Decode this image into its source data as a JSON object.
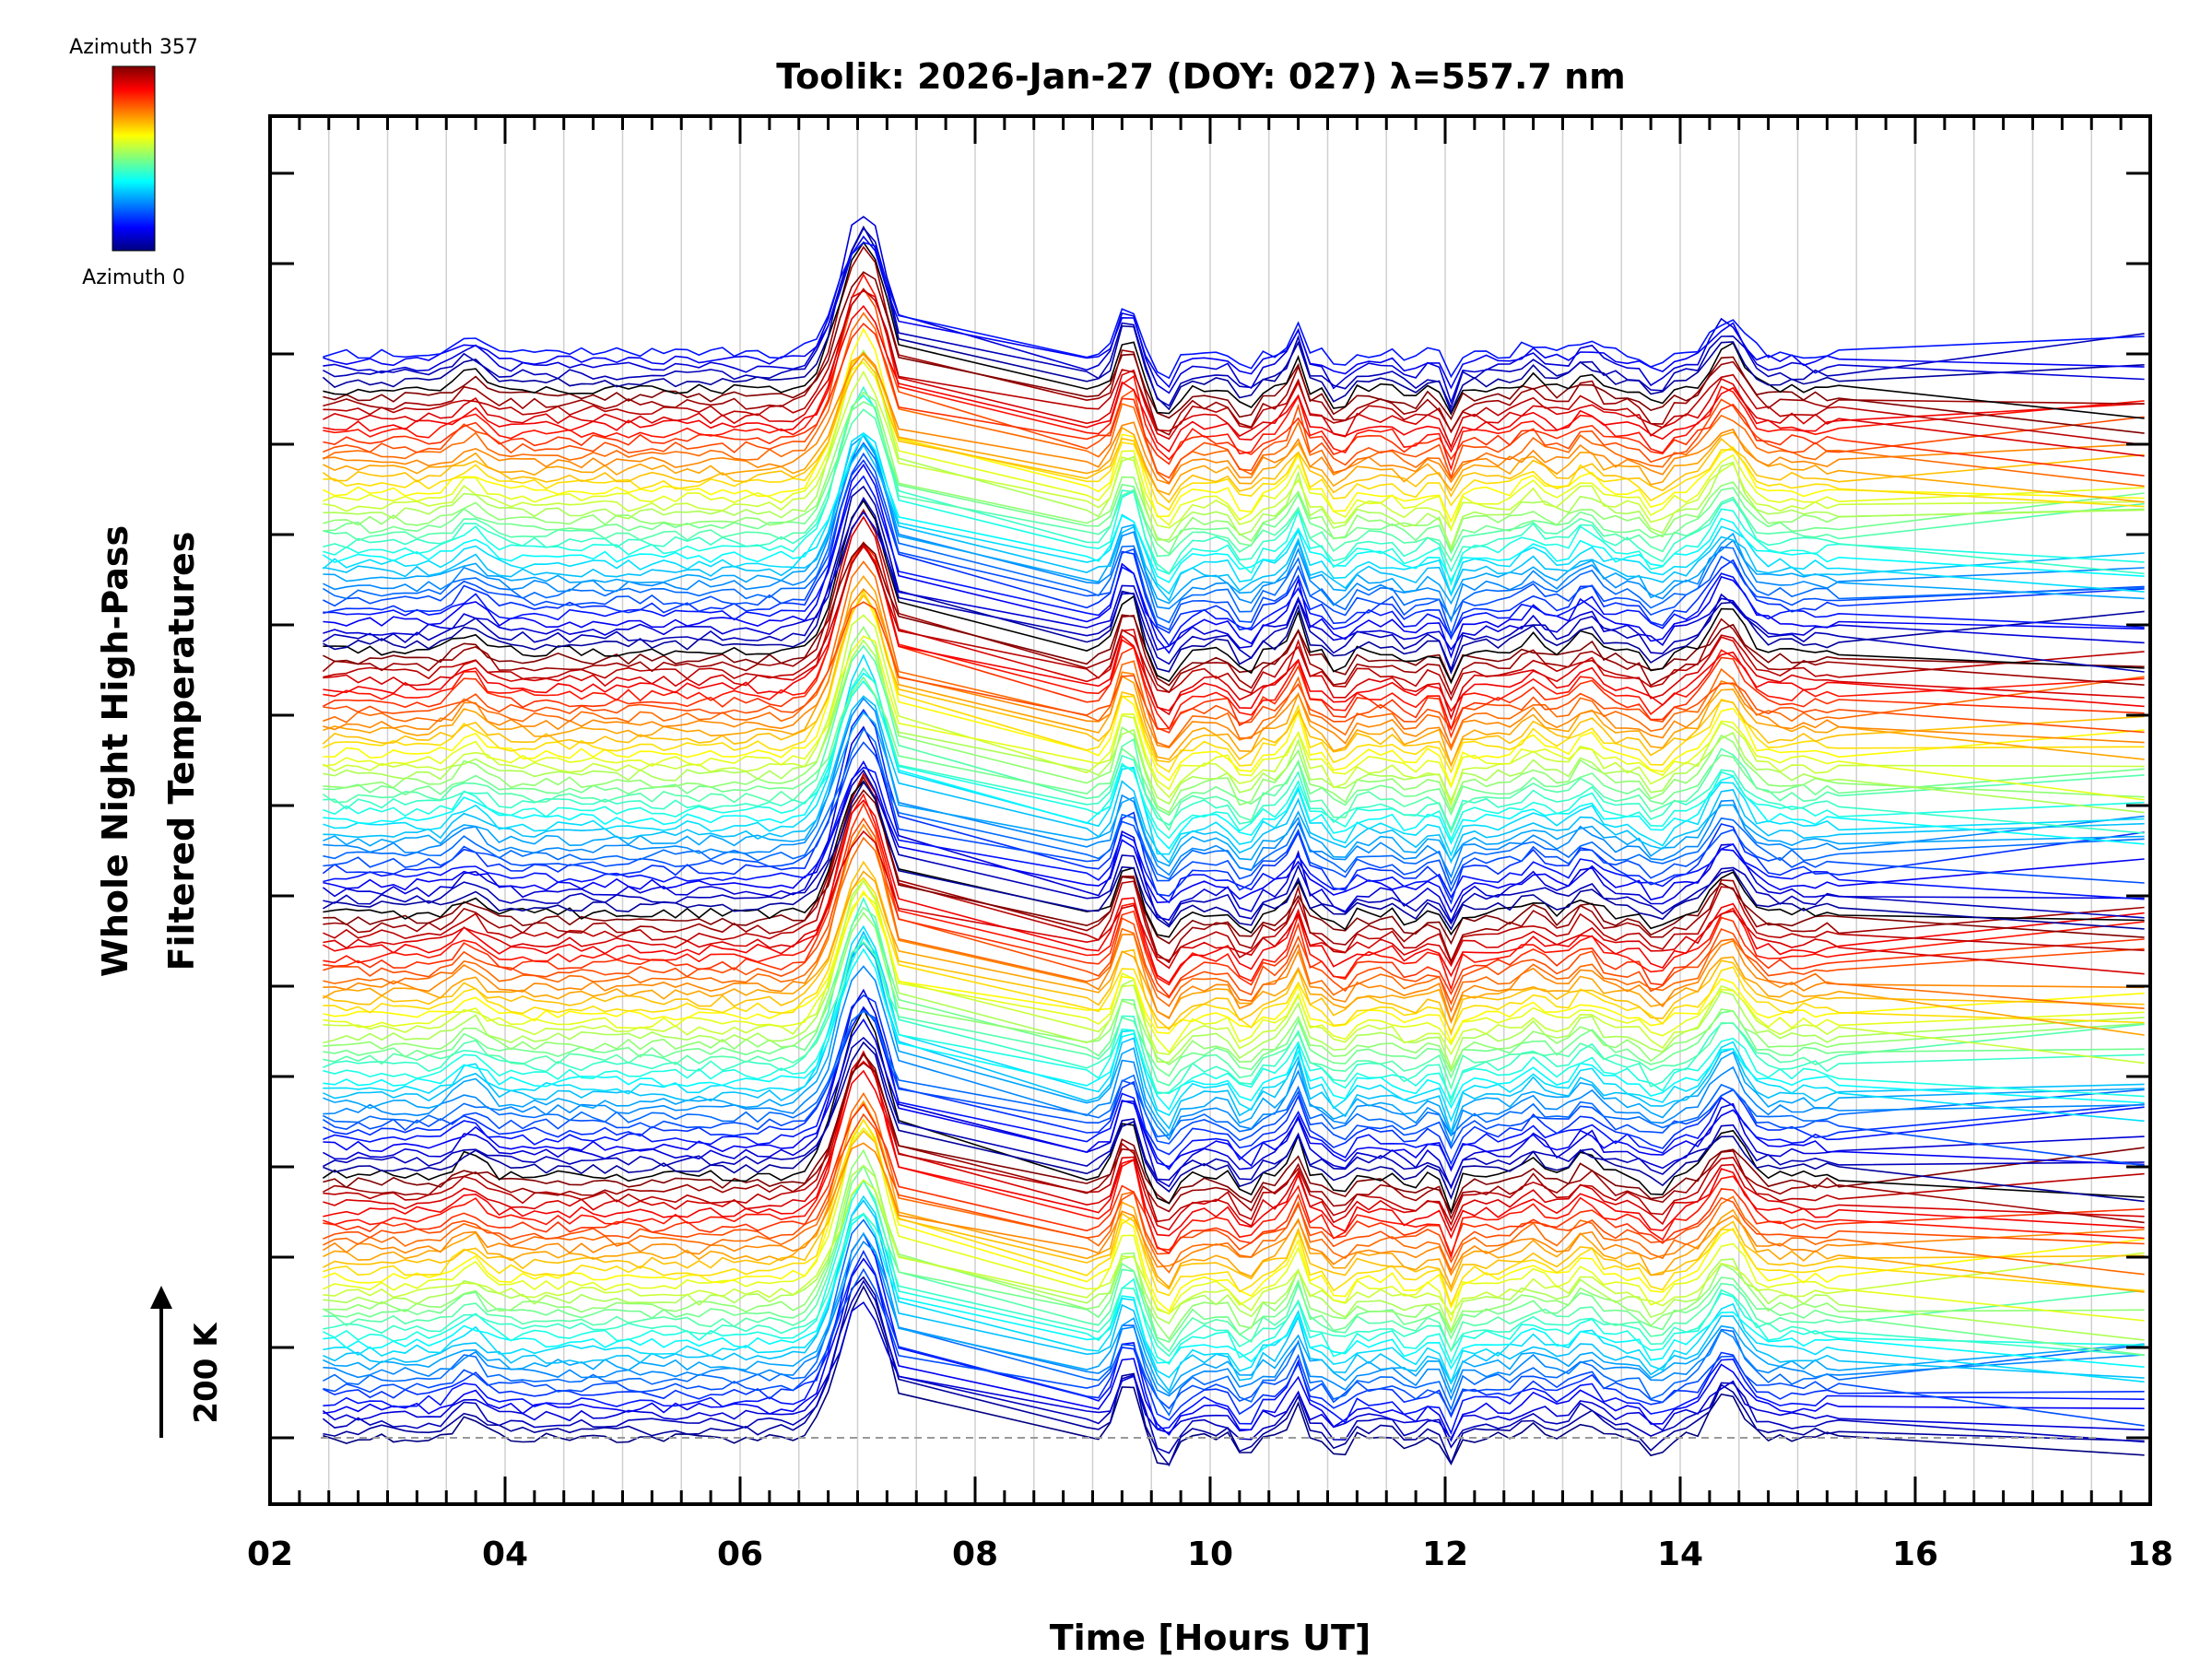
{
  "chart_data": {
    "type": "line",
    "title": "Toolik: 2026-Jan-27 (DOY: 027) λ=557.7 nm",
    "xlabel": "Time [Hours UT]",
    "ylabel_line1": "Whole Night High-Pass",
    "ylabel_line2": "Filtered Temperatures",
    "xlim": [
      2,
      18
    ],
    "x_ticks": [
      "02",
      "04",
      "06",
      "08",
      "10",
      "12",
      "14",
      "16",
      "18"
    ],
    "x_tick_values": [
      2,
      4,
      6,
      8,
      10,
      12,
      14,
      16,
      18
    ],
    "grid": "vertical",
    "scale_bar_label": "200 K",
    "colorbar": {
      "label_top": "Azimuth 357",
      "label_bottom": "Azimuth 0",
      "min": 0,
      "max": 357,
      "colormap": "jet"
    },
    "series_description": "Stacked high-pass filtered temperature time series, one per azimuth bin, offset vertically and colored by azimuth",
    "series_count": 150,
    "data_start_hour": 2.45,
    "data_end_hour": 15.35,
    "extrapolated_end_hour": 17.95,
    "feature_hours": [
      3.7,
      6.3,
      7.05,
      7.35,
      8.9,
      9.3,
      9.6,
      10.3,
      10.7,
      11.1,
      11.7,
      12.05,
      12.75,
      13.2,
      13.8,
      14.4,
      15.0,
      15.3
    ]
  },
  "colors": {
    "background": "#ffffff",
    "axes": "#000000",
    "grid": "#d0d0d0",
    "baseline": "#999999"
  }
}
